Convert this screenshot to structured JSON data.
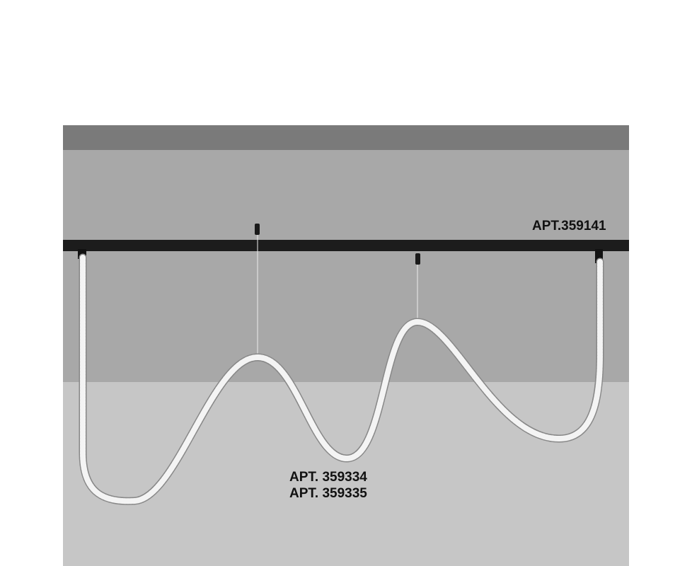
{
  "labels": {
    "track": "APT.359141",
    "pendant_1": "APT. 359334",
    "pendant_2": "APT. 359335"
  },
  "colors": {
    "background": "#ffffff",
    "ceiling_band": "#7a7a7a",
    "wall": "#a8a8a8",
    "floor": "#c6c6c6",
    "rail": "#1c1c1c",
    "cable": "#f4f4f4"
  }
}
